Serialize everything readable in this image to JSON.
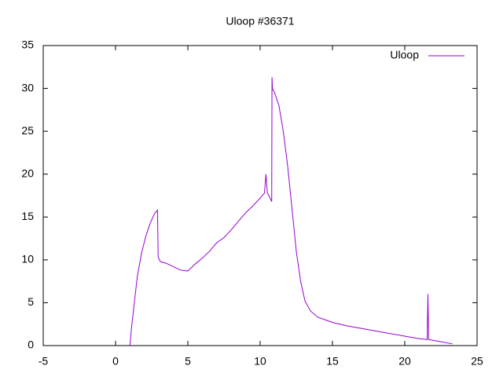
{
  "chart_data": {
    "type": "line",
    "title": "Uloop #36371",
    "x": [
      1.0,
      1.1,
      1.3,
      1.5,
      1.8,
      2.1,
      2.4,
      2.7,
      2.9,
      2.95,
      3.1,
      3.5,
      4.0,
      4.5,
      5.0,
      5.5,
      6.0,
      6.5,
      7.0,
      7.5,
      8.0,
      8.5,
      9.0,
      9.5,
      10.0,
      10.3,
      10.4,
      10.5,
      10.6,
      10.8,
      10.82,
      10.85,
      10.9,
      11.0,
      11.3,
      11.6,
      11.9,
      12.2,
      12.5,
      12.8,
      13.1,
      13.5,
      14.0,
      14.5,
      15.0,
      16,
      17,
      18,
      19,
      20,
      21,
      21.55,
      21.6,
      21.65,
      22,
      22.5,
      23.3
    ],
    "series": [
      {
        "name": "Uloop",
        "color": "#9400d3",
        "values": [
          0,
          2,
          5,
          8,
          10.8,
          12.8,
          14.3,
          15.4,
          15.8,
          10.3,
          9.8,
          9.6,
          9.2,
          8.8,
          8.7,
          9.5,
          10.2,
          11,
          12,
          12.6,
          13.5,
          14.5,
          15.5,
          16.3,
          17.2,
          17.8,
          20,
          17.8,
          17.5,
          16.8,
          31.3,
          30,
          29.8,
          29.5,
          28,
          25,
          21,
          16,
          11,
          7.5,
          5.2,
          4,
          3.3,
          3,
          2.7,
          2.3,
          2,
          1.7,
          1.4,
          1.1,
          0.8,
          0.7,
          6,
          0.7,
          0.6,
          0.45,
          0.2
        ]
      }
    ],
    "xlim": [
      -5,
      25
    ],
    "xticks": [
      -5,
      0,
      5,
      10,
      15,
      20,
      25
    ],
    "ylim": [
      0,
      35
    ],
    "yticks": [
      0,
      5,
      10,
      15,
      20,
      25,
      30,
      35
    ],
    "legend": "top-right",
    "grid": false
  }
}
